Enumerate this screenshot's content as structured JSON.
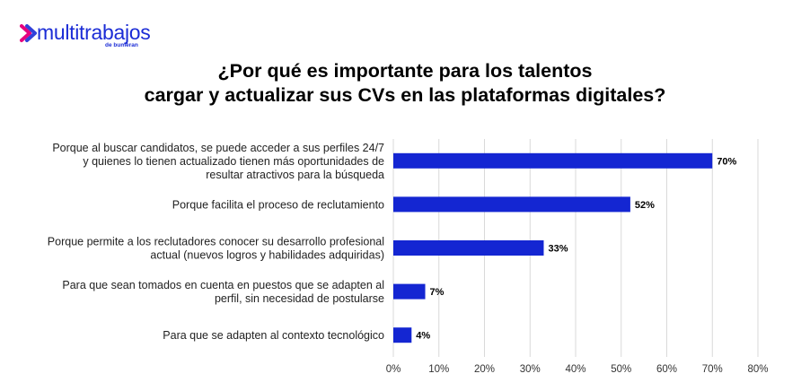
{
  "logo": {
    "name": "multitrabajos",
    "sub": "de bumeran",
    "brand_color": "#1b2cd6",
    "accent_color": "#e6007e"
  },
  "chart_data": {
    "type": "bar",
    "orientation": "horizontal",
    "title_lines": [
      "¿Por qué es importante para los talentos",
      "cargar y actualizar sus CVs en las plataformas digitales?"
    ],
    "categories": [
      [
        "Porque al buscar candidatos, se puede acceder a sus perfiles 24/7",
        "y quienes lo tienen actualizado tienen más oportunidades de",
        "resultar atractivos para la búsqueda"
      ],
      [
        "Porque facilita el proceso de reclutamiento"
      ],
      [
        "Porque permite a los reclutadores conocer su desarrollo profesional",
        "actual (nuevos logros y habilidades adquiridas)"
      ],
      [
        "Para que sean tomados en cuenta en puestos que se adapten al",
        "perfil, sin necesidad de postularse"
      ],
      [
        "Para que se adapten al contexto tecnológico"
      ]
    ],
    "values": [
      70,
      52,
      33,
      7,
      4
    ],
    "value_labels": [
      "70%",
      "52%",
      "33%",
      "7%",
      "4%"
    ],
    "xlim": [
      0,
      80
    ],
    "x_ticks": [
      "0%",
      "10%",
      "20%",
      "30%",
      "40%",
      "50%",
      "60%",
      "70%",
      "80%"
    ],
    "grid": true,
    "bar_color": "#1426d2",
    "grid_color": "#d9d9d9"
  }
}
